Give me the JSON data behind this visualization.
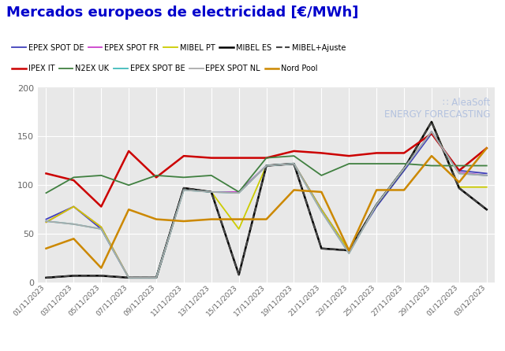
{
  "title": "Mercados europeos de electricidad [€/MWh]",
  "title_color": "#0000cc",
  "background_color": "#ffffff",
  "plot_bg_color": "#e8e8e8",
  "grid_color": "#ffffff",
  "x_labels": [
    "01/11/2023",
    "03/11/2023",
    "05/11/2023",
    "07/11/2023",
    "09/11/2023",
    "11/11/2023",
    "13/11/2023",
    "15/11/2023",
    "17/11/2023",
    "19/11/2023",
    "21/11/2023",
    "23/11/2023",
    "25/11/2023",
    "27/11/2023",
    "29/11/2023",
    "01/12/2023",
    "03/12/2023"
  ],
  "ylim": [
    0,
    200
  ],
  "yticks": [
    0,
    50,
    100,
    150,
    200
  ],
  "series": {
    "EPEX SPOT DE": {
      "color": "#4040bb",
      "linestyle": "-",
      "linewidth": 1.3,
      "values": [
        65,
        78,
        55,
        5,
        5,
        97,
        93,
        93,
        120,
        122,
        75,
        33,
        78,
        115,
        153,
        115,
        112
      ]
    },
    "EPEX SPOT FR": {
      "color": "#cc40cc",
      "linestyle": "-",
      "linewidth": 1.3,
      "values": [
        62,
        78,
        57,
        5,
        5,
        97,
        93,
        93,
        120,
        122,
        75,
        33,
        80,
        117,
        155,
        113,
        110
      ]
    },
    "MIBEL PT": {
      "color": "#cccc00",
      "linestyle": "-",
      "linewidth": 1.3,
      "values": [
        62,
        78,
        57,
        5,
        5,
        97,
        93,
        55,
        120,
        122,
        75,
        33,
        80,
        117,
        165,
        98,
        98
      ]
    },
    "MIBEL ES": {
      "color": "#000000",
      "linestyle": "-",
      "linewidth": 1.8,
      "values": [
        5,
        7,
        7,
        5,
        5,
        97,
        93,
        8,
        120,
        122,
        35,
        33,
        80,
        117,
        165,
        97,
        75
      ]
    },
    "MIBEL+Ajuste": {
      "color": "#444444",
      "linestyle": "--",
      "linewidth": 1.5,
      "values": [
        5,
        7,
        7,
        5,
        5,
        97,
        93,
        8,
        120,
        122,
        35,
        33,
        80,
        117,
        165,
        97,
        75
      ]
    },
    "IPEX IT": {
      "color": "#cc0000",
      "linestyle": "-",
      "linewidth": 1.8,
      "values": [
        112,
        105,
        78,
        135,
        108,
        130,
        128,
        128,
        128,
        135,
        133,
        130,
        133,
        133,
        153,
        115,
        138
      ]
    },
    "N2EX UK": {
      "color": "#408040",
      "linestyle": "-",
      "linewidth": 1.3,
      "values": [
        92,
        108,
        110,
        100,
        110,
        108,
        110,
        93,
        128,
        130,
        110,
        122,
        122,
        122,
        120,
        120,
        120
      ]
    },
    "EPEX SPOT BE": {
      "color": "#40bbbb",
      "linestyle": "-",
      "linewidth": 1.3,
      "values": [
        63,
        60,
        55,
        5,
        5,
        95,
        93,
        92,
        120,
        122,
        73,
        30,
        80,
        117,
        155,
        112,
        110
      ]
    },
    "EPEX SPOT NL": {
      "color": "#aaaaaa",
      "linestyle": "-",
      "linewidth": 1.3,
      "values": [
        63,
        60,
        55,
        5,
        5,
        95,
        93,
        92,
        120,
        122,
        73,
        30,
        80,
        117,
        155,
        112,
        110
      ]
    },
    "Nord Pool": {
      "color": "#cc8800",
      "linestyle": "-",
      "linewidth": 1.8,
      "values": [
        35,
        45,
        15,
        75,
        65,
        63,
        65,
        65,
        65,
        95,
        93,
        33,
        95,
        95,
        130,
        103,
        138
      ]
    }
  },
  "legend_row1": [
    "EPEX SPOT DE",
    "EPEX SPOT FR",
    "MIBEL PT",
    "MIBEL ES",
    "MIBEL+Ajuste"
  ],
  "legend_row2": [
    "IPEX IT",
    "N2EX UK",
    "EPEX SPOT BE",
    "EPEX SPOT NL",
    "Nord Pool"
  ],
  "watermark_color": "#aabbdd"
}
